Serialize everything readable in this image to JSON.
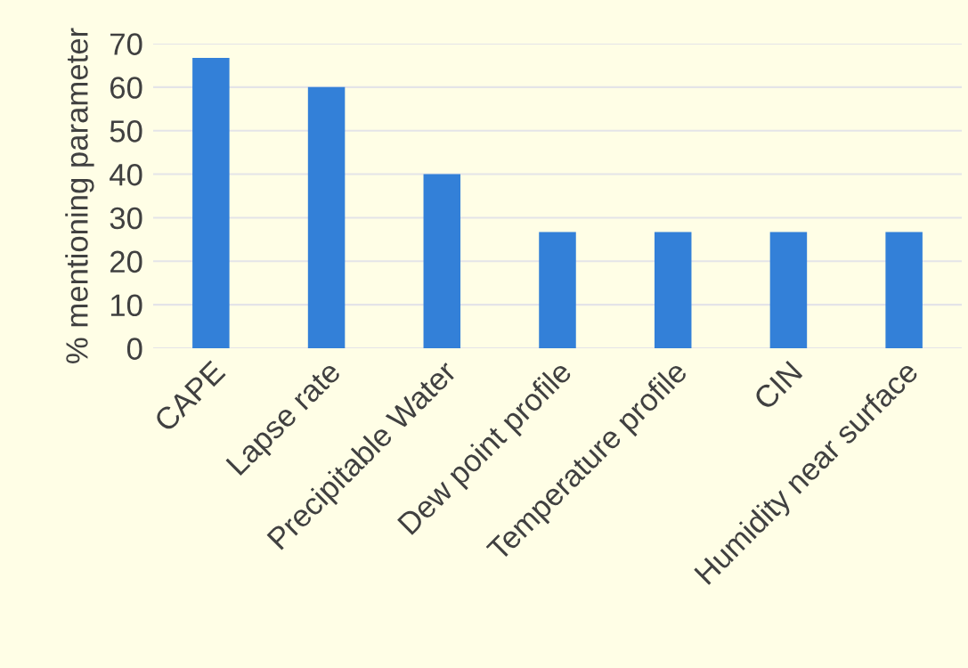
{
  "chart_data": {
    "type": "bar",
    "ylabel": "% mentioning parameter",
    "categories": [
      "CAPE",
      "Lapse rate",
      "Precipitable Water",
      "Dew point profile",
      "Temperature profile",
      "CIN",
      "Humidity near surface"
    ],
    "values": [
      66.7,
      60,
      40,
      26.7,
      26.7,
      26.7,
      26.7
    ],
    "color": "#3380d8",
    "ylim": [
      0,
      70
    ],
    "yticks": [
      0,
      10,
      20,
      30,
      40,
      50,
      60,
      70
    ],
    "grid": "y"
  }
}
